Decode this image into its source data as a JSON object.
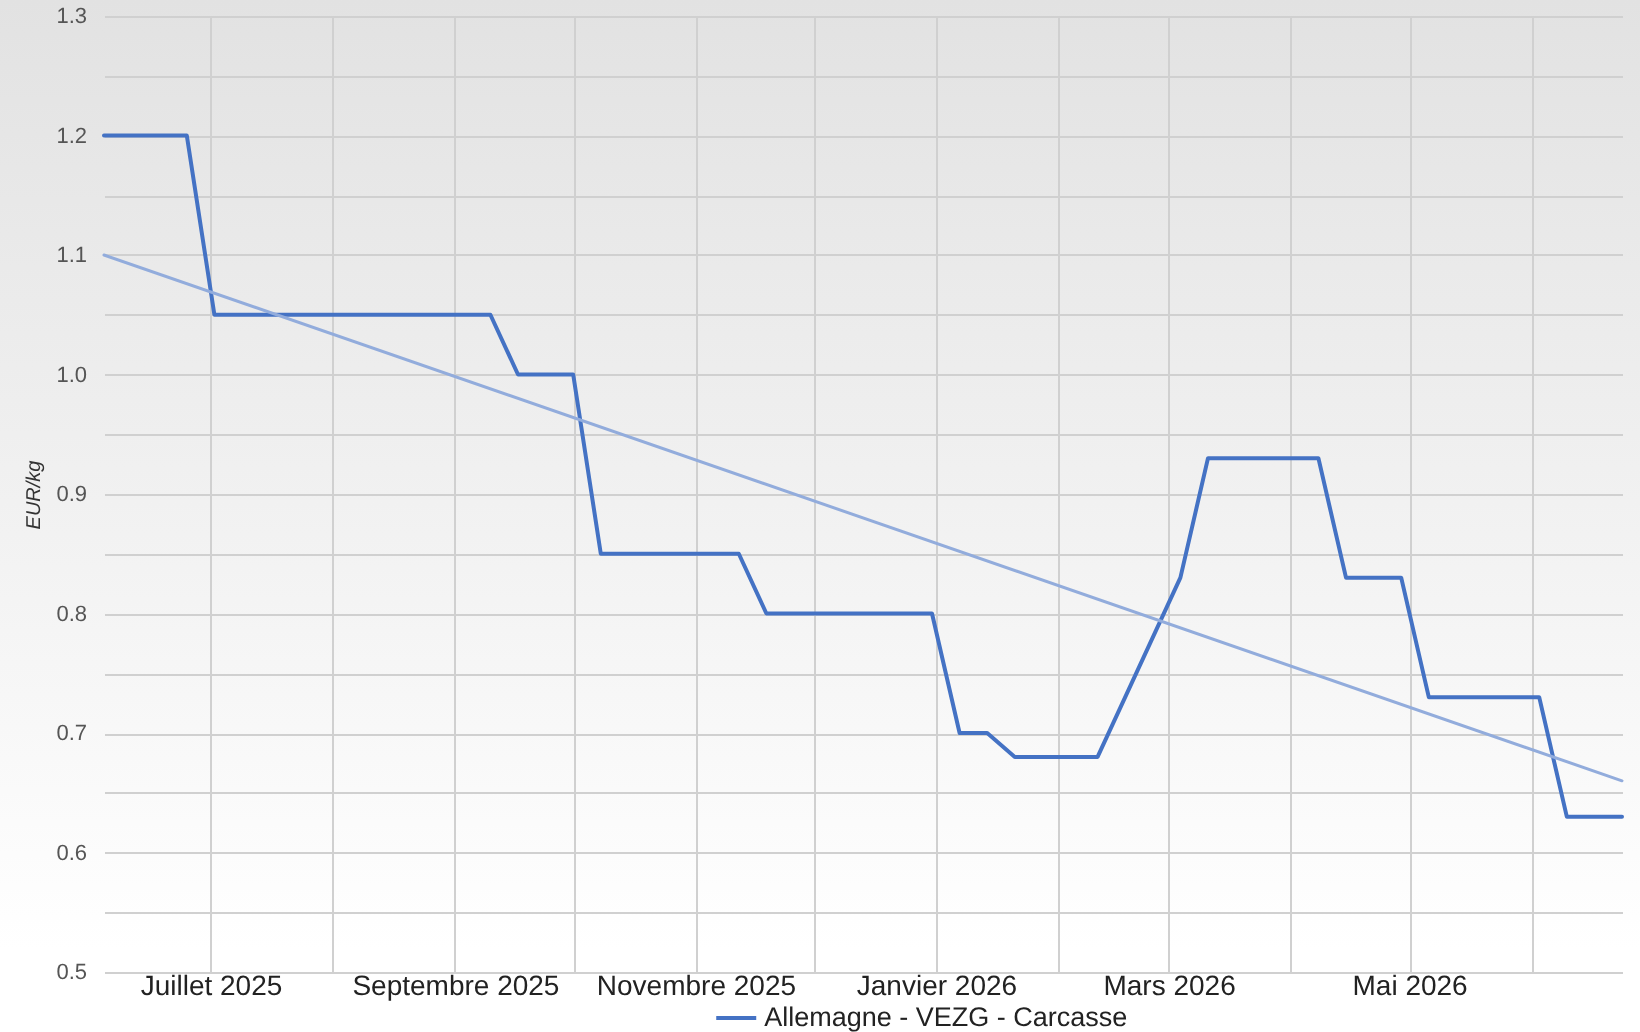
{
  "chart_data": {
    "type": "line",
    "ylabel": "EUR/kg",
    "xlim": [
      "2025-06-04",
      "2026-06-24"
    ],
    "xticks": [
      {
        "value": "2025-07-01",
        "label": "Juillet 2025"
      },
      {
        "value": "2025-08-01",
        "label": null
      },
      {
        "value": "2025-09-01",
        "label": "Septembre 2025"
      },
      {
        "value": "2025-10-01",
        "label": null
      },
      {
        "value": "2025-11-01",
        "label": "Novembre 2025"
      },
      {
        "value": "2025-12-01",
        "label": null
      },
      {
        "value": "2026-01-01",
        "label": "Janvier 2026"
      },
      {
        "value": "2026-02-01",
        "label": null
      },
      {
        "value": "2026-03-01",
        "label": "Mars 2026"
      },
      {
        "value": "2026-04-01",
        "label": null
      },
      {
        "value": "2026-05-01",
        "label": "Mai 2026"
      },
      {
        "value": "2026-06-01",
        "label": null
      }
    ],
    "ylim": [
      0.5,
      1.3
    ],
    "yticks": [
      0.5,
      {
        "value": 0.55,
        "label": null
      },
      0.6,
      {
        "value": 0.65,
        "label": null
      },
      0.7,
      {
        "value": 0.75,
        "label": null
      },
      0.8,
      {
        "value": 0.85,
        "label": null
      },
      0.9,
      {
        "value": 0.95,
        "label": null
      },
      {
        "value": 1,
        "label": "1.0"
      },
      {
        "value": 1.05,
        "label": null
      },
      1.1,
      {
        "value": 1.15,
        "label": null
      },
      1.2,
      {
        "value": 1.25,
        "label": null
      },
      1.3
    ],
    "grid": true,
    "legend": "bottom",
    "series": [
      {
        "name": "Allemagne - VEZG - Carcasse",
        "color": "#4472c4",
        "x": [
          "2025-06-04",
          "2025-06-25",
          "2025-07-02",
          "2025-09-10",
          "2025-09-17",
          "2025-10-01",
          "2025-10-08",
          "2025-11-12",
          "2025-11-19",
          "2025-12-31",
          "2026-01-07",
          "2026-01-14",
          "2026-01-21",
          "2026-02-11",
          "2026-03-04",
          "2026-03-11",
          "2026-04-08",
          "2026-04-15",
          "2026-04-29",
          "2026-05-06",
          "2026-06-03",
          "2026-06-10",
          "2026-06-24"
        ],
        "values": [
          1.2,
          1.2,
          1.05,
          1.05,
          1.0,
          1.0,
          0.85,
          0.85,
          0.8,
          0.8,
          0.7,
          0.7,
          0.68,
          0.68,
          0.83,
          0.93,
          0.93,
          0.83,
          0.83,
          0.73,
          0.73,
          0.63,
          0.63
        ]
      },
      {
        "type": "line",
        "color": "#92acdc",
        "x": [
          "2025-06-04",
          "2026-06-24"
        ],
        "values": [
          1.1,
          0.66
        ]
      }
    ]
  }
}
